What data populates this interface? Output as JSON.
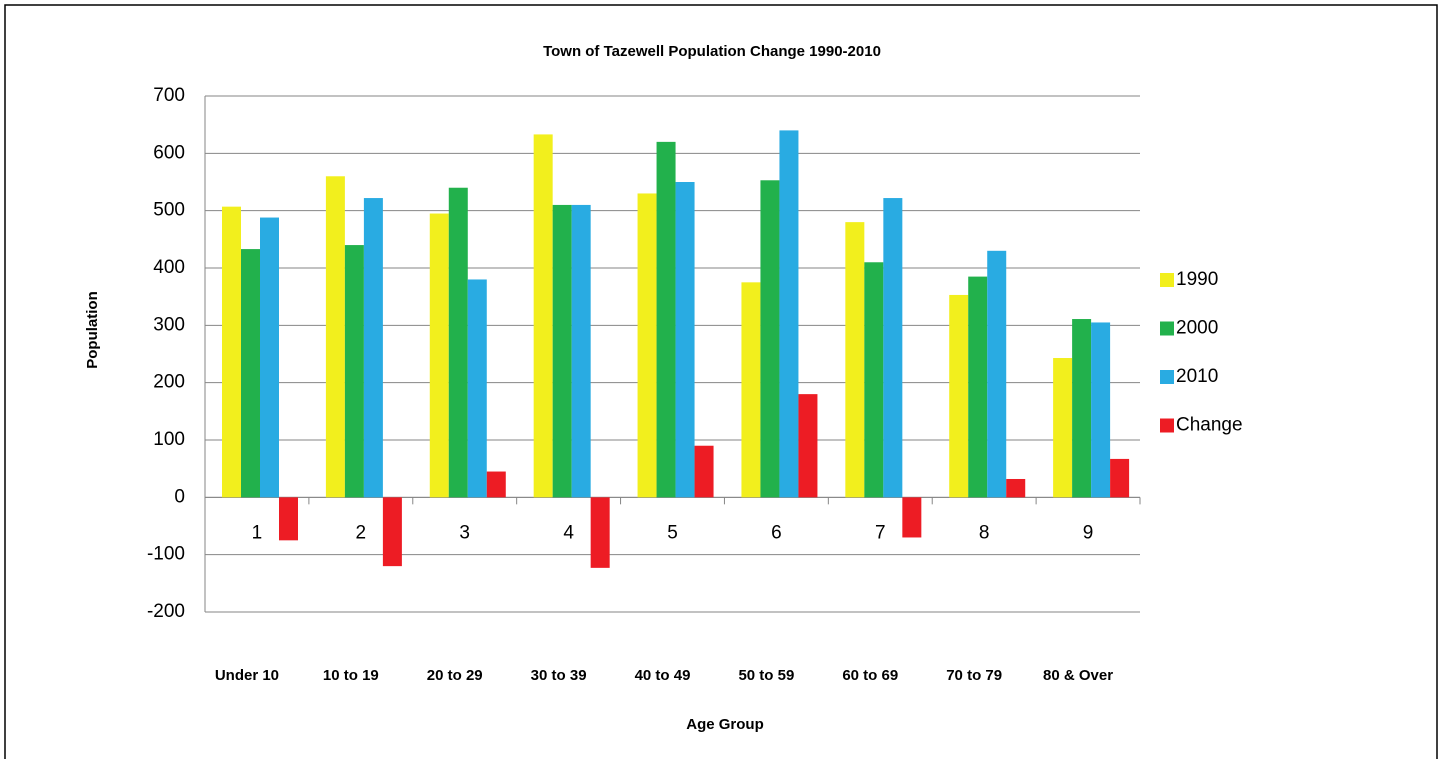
{
  "chart_data": {
    "type": "bar",
    "title": "Town of Tazewell Population Change 1990-2010",
    "x_label": "Age Group",
    "y_label": "Population",
    "categories": [
      "1",
      "2",
      "3",
      "4",
      "5",
      "6",
      "7",
      "8",
      "9"
    ],
    "group_labels": [
      "Under 10",
      "10 to 19",
      "20 to 29",
      "30 to 39",
      "40 to 49",
      "50 to 59",
      "60 to 69",
      "70 to 79",
      "80 & Over"
    ],
    "series": [
      {
        "name": "1990",
        "color": "#f2ef1d",
        "values": [
          507,
          560,
          495,
          633,
          530,
          375,
          480,
          353,
          243
        ]
      },
      {
        "name": "2000",
        "color": "#22b14c",
        "values": [
          433,
          440,
          540,
          510,
          620,
          553,
          410,
          385,
          311
        ]
      },
      {
        "name": "2010",
        "color": "#29abe2",
        "values": [
          488,
          522,
          380,
          510,
          550,
          640,
          522,
          430,
          305
        ]
      },
      {
        "name": "Change",
        "color": "#ed1c24",
        "values": [
          -75,
          -120,
          45,
          -123,
          90,
          180,
          -70,
          32,
          67
        ]
      }
    ],
    "ylim": [
      -200,
      700
    ],
    "yticks": [
      -200,
      -100,
      0,
      100,
      200,
      300,
      400,
      500,
      600,
      700
    ],
    "grid": true,
    "legend": "right"
  }
}
